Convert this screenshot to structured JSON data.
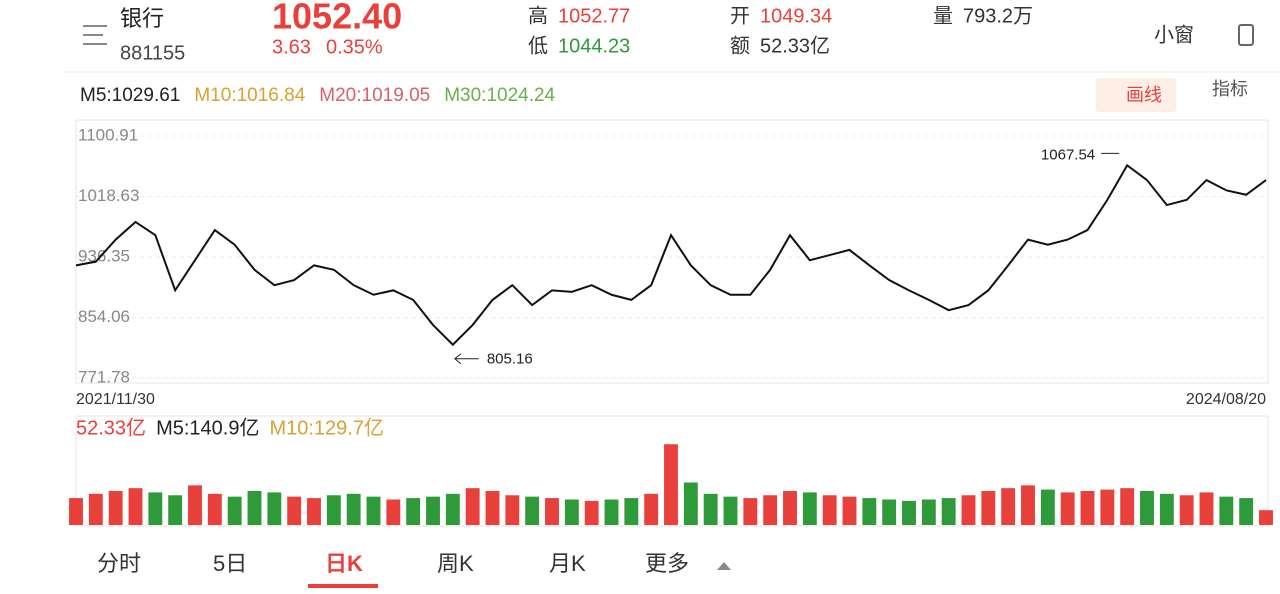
{
  "header": {
    "name": "银行",
    "code": "881155",
    "price": "1052.40",
    "change": "3.63",
    "change_pct": "0.35%",
    "high_label": "高",
    "high": "1052.77",
    "low_label": "低",
    "low": "1044.23",
    "open_label": "开",
    "open": "1049.34",
    "amount_label": "额",
    "amount": "52.33亿",
    "volume_label": "量",
    "volume": "793.2万",
    "mini_window": "小窗"
  },
  "ma_legend": [
    {
      "text": "M5:1029.61",
      "color": "#222222"
    },
    {
      "text": "M10:1016.84",
      "color": "#d9a032"
    },
    {
      "text": "M20:1019.05",
      "color": "#d9606a"
    },
    {
      "text": "M30:1024.24",
      "color": "#6aaf4c"
    }
  ],
  "tools": {
    "draw": "画线",
    "indicator": "指标"
  },
  "chart_data": [
    {
      "type": "line",
      "color": "#111111",
      "up_color": "#e8413c",
      "down_color": "#2e9a3a",
      "max_label": "1067.54",
      "min_label": "805.16",
      "categories": [
        "2021/11/30",
        null,
        null,
        null,
        null,
        null,
        null,
        null,
        null,
        null,
        null,
        null,
        null,
        null,
        null,
        null,
        null,
        null,
        null,
        null,
        null,
        null,
        null,
        null,
        null,
        null,
        null,
        null,
        null,
        null,
        null,
        null,
        null,
        null,
        null,
        null,
        null,
        null,
        null,
        null,
        null,
        null,
        null,
        null,
        null,
        null,
        null,
        null,
        null,
        null,
        null,
        null,
        null,
        null,
        null,
        null,
        null,
        null,
        null,
        null,
        "2024/08/20"
      ],
      "values": [
        925,
        930,
        960,
        984,
        966,
        891,
        932,
        973,
        953,
        919,
        898,
        905,
        925,
        919,
        898,
        885,
        891,
        878,
        844,
        817,
        844,
        878,
        898,
        871,
        891,
        889,
        898,
        885,
        878,
        898,
        966,
        925,
        898,
        885,
        885,
        919,
        966,
        932,
        939,
        946,
        925,
        905,
        891,
        878,
        864,
        871,
        891,
        925,
        960,
        953,
        960,
        973,
        1014,
        1061,
        1041,
        1007,
        1014,
        1041,
        1027,
        1021,
        1041
      ],
      "ylim": [
        771.78,
        1100.91
      ],
      "yticks": [
        1100.91,
        1018.63,
        936.35,
        854.06,
        771.78
      ],
      "grid": true
    },
    {
      "type": "bar",
      "up_color": "#e8413c",
      "down_color": "#2e9a3a",
      "ylim": [
        0,
        300
      ],
      "legend": [
        {
          "text": "52.33亿",
          "color": "#e8413c"
        },
        {
          "text": "M5:140.9亿",
          "color": "#222222"
        },
        {
          "text": "M10:129.7亿",
          "color": "#d9a032"
        }
      ],
      "values": [
        95,
        110,
        120,
        130,
        115,
        105,
        140,
        110,
        100,
        120,
        115,
        100,
        95,
        105,
        110,
        100,
        90,
        95,
        100,
        110,
        130,
        120,
        105,
        100,
        95,
        90,
        85,
        90,
        95,
        110,
        285,
        150,
        110,
        100,
        95,
        105,
        120,
        115,
        105,
        100,
        95,
        90,
        85,
        90,
        95,
        105,
        120,
        130,
        140,
        125,
        115,
        120,
        125,
        130,
        120,
        110,
        105,
        115,
        100,
        95,
        52.33
      ]
    }
  ],
  "tabs": [
    "分时",
    "5日",
    "日K",
    "周K",
    "月K",
    "更多"
  ]
}
